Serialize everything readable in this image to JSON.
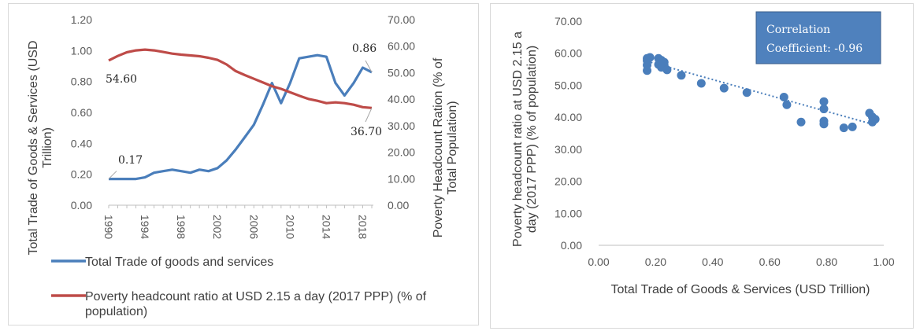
{
  "chart_data": [
    {
      "type": "line",
      "x": [
        1990,
        1991,
        1992,
        1993,
        1994,
        1995,
        1996,
        1997,
        1998,
        1999,
        2000,
        2001,
        2002,
        2003,
        2004,
        2005,
        2006,
        2007,
        2008,
        2009,
        2010,
        2011,
        2012,
        2013,
        2014,
        2015,
        2016,
        2017,
        2018,
        2019
      ],
      "x_tick_labels": [
        "1990",
        "1994",
        "1998",
        "2002",
        "2006",
        "2010",
        "2014",
        "2018"
      ],
      "y_left_tick_labels": [
        "0.00",
        "0.20",
        "0.40",
        "0.60",
        "0.80",
        "1.00",
        "1.20"
      ],
      "y_right_tick_labels": [
        "0.00",
        "10.00",
        "20.00",
        "30.00",
        "40.00",
        "50.00",
        "60.00",
        "70.00"
      ],
      "ylim_left": [
        0,
        1.2
      ],
      "ylim_right": [
        0,
        70
      ],
      "ylabel_left": "Total Trade of Goods & Services (USD Trillion)",
      "ylabel_right": "Poverty Headcount Ration (% of Total Population)",
      "series": [
        {
          "name": "Total Trade of goods and services",
          "axis": "left",
          "color": "#4a7ebb",
          "values": [
            0.17,
            0.17,
            0.17,
            0.17,
            0.18,
            0.21,
            0.22,
            0.23,
            0.22,
            0.21,
            0.23,
            0.22,
            0.24,
            0.29,
            0.36,
            0.44,
            0.52,
            0.65,
            0.79,
            0.66,
            0.79,
            0.95,
            0.96,
            0.97,
            0.96,
            0.79,
            0.71,
            0.79,
            0.89,
            0.86
          ]
        },
        {
          "name": "Poverty headcount ratio at USD 2.15 a day (2017 PPP) (% of population)",
          "axis": "right",
          "color": "#be4b48",
          "values": [
            54.6,
            56.3,
            57.7,
            58.4,
            58.7,
            58.4,
            57.8,
            57.2,
            56.8,
            56.5,
            56.2,
            55.6,
            54.8,
            53.1,
            50.6,
            49.1,
            47.7,
            46.3,
            44.9,
            43.9,
            42.6,
            41.3,
            40.1,
            39.4,
            38.5,
            38.8,
            38.5,
            37.9,
            37.0,
            36.7
          ]
        }
      ],
      "annotations": [
        "54.60",
        "0.17",
        "0.86",
        "36.70"
      ],
      "grid": false,
      "legend_position": "bottom"
    },
    {
      "type": "scatter",
      "xlabel": "Total Trade of Goods & Services (USD Trillion)",
      "ylabel": "Poverty headcount ratio at USD 2.15 a day (2017 PPP) (% of population)",
      "x_tick_labels": [
        "0.00",
        "0.20",
        "0.40",
        "0.60",
        "0.80",
        "1.00"
      ],
      "y_tick_labels": [
        "0.00",
        "10.00",
        "20.00",
        "30.00",
        "40.00",
        "50.00",
        "60.00",
        "70.00"
      ],
      "xlim": [
        0,
        1.0
      ],
      "ylim": [
        0,
        70
      ],
      "color": "#4a7ebb",
      "points": [
        {
          "x": 0.17,
          "y": 54.6
        },
        {
          "x": 0.17,
          "y": 56.3
        },
        {
          "x": 0.17,
          "y": 57.7
        },
        {
          "x": 0.17,
          "y": 58.4
        },
        {
          "x": 0.18,
          "y": 58.7
        },
        {
          "x": 0.21,
          "y": 58.4
        },
        {
          "x": 0.22,
          "y": 57.8
        },
        {
          "x": 0.23,
          "y": 57.2
        },
        {
          "x": 0.22,
          "y": 56.8
        },
        {
          "x": 0.21,
          "y": 56.5
        },
        {
          "x": 0.23,
          "y": 56.2
        },
        {
          "x": 0.22,
          "y": 55.6
        },
        {
          "x": 0.24,
          "y": 54.8
        },
        {
          "x": 0.29,
          "y": 53.1
        },
        {
          "x": 0.36,
          "y": 50.6
        },
        {
          "x": 0.44,
          "y": 49.1
        },
        {
          "x": 0.52,
          "y": 47.7
        },
        {
          "x": 0.65,
          "y": 46.3
        },
        {
          "x": 0.79,
          "y": 44.9
        },
        {
          "x": 0.66,
          "y": 43.9
        },
        {
          "x": 0.79,
          "y": 42.6
        },
        {
          "x": 0.95,
          "y": 41.3
        },
        {
          "x": 0.96,
          "y": 40.1
        },
        {
          "x": 0.97,
          "y": 39.4
        },
        {
          "x": 0.96,
          "y": 38.5
        },
        {
          "x": 0.79,
          "y": 38.8
        },
        {
          "x": 0.71,
          "y": 38.5
        },
        {
          "x": 0.79,
          "y": 37.9
        },
        {
          "x": 0.89,
          "y": 37.0
        },
        {
          "x": 0.86,
          "y": 36.7
        }
      ],
      "trendline": {
        "x": [
          0.17,
          0.97
        ],
        "y": [
          57.5,
          37.6
        ],
        "style": "dotted"
      },
      "correlation_label": [
        "Correlation",
        "Coefficient: -0.96"
      ],
      "correlation_box_color": "#4f81bd",
      "grid": false
    }
  ]
}
